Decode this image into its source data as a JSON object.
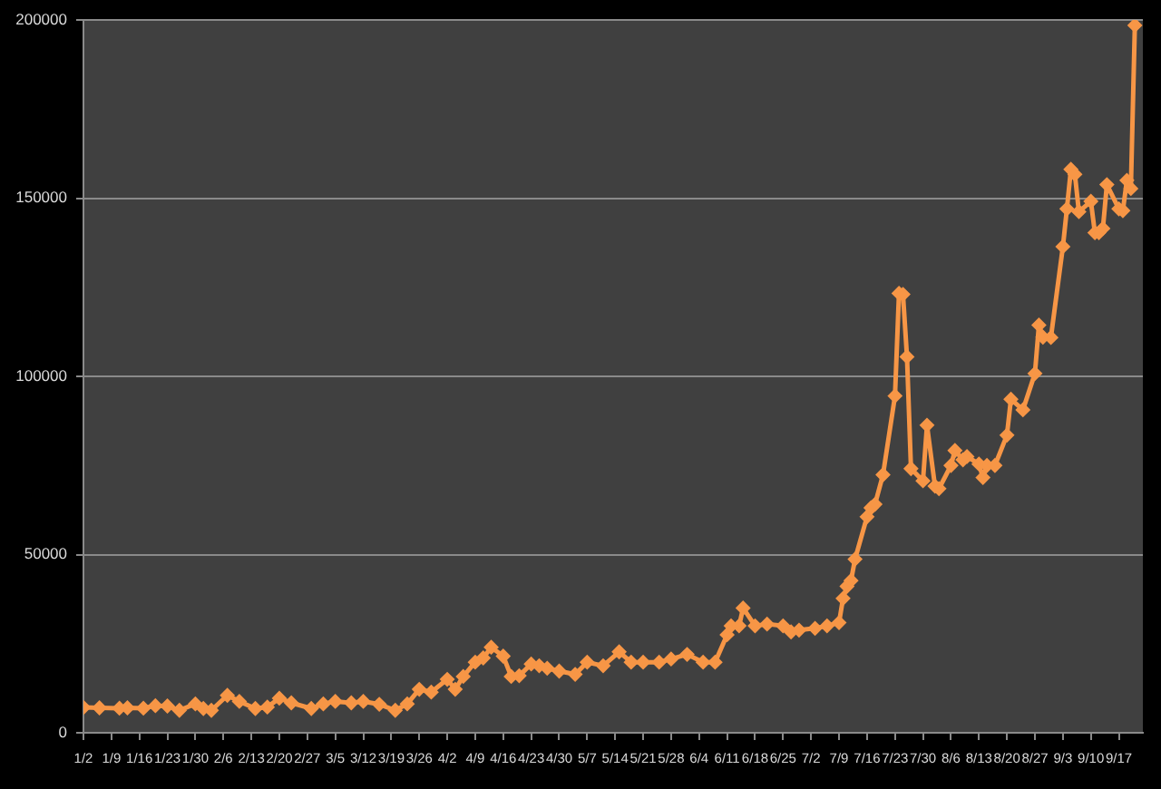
{
  "chart_data": {
    "type": "line",
    "x": [
      "--01-02",
      "--01-06",
      "--01-11",
      "--01-13",
      "--01-17",
      "--01-20",
      "--01-23",
      "--01-26",
      "--01-30",
      "--02-01",
      "--02-03",
      "--02-07",
      "--02-10",
      "--02-14",
      "--02-17",
      "--02-20",
      "--02-23",
      "--02-28",
      "--03-02",
      "--03-05",
      "--03-09",
      "--03-12",
      "--03-16",
      "--03-20",
      "--03-23",
      "--03-26",
      "--03-29",
      "--04-02",
      "--04-04",
      "--04-06",
      "--04-09",
      "--04-11",
      "--04-13",
      "--04-16",
      "--04-18",
      "--04-20",
      "--04-23",
      "--04-25",
      "--04-27",
      "--04-30",
      "--05-04",
      "--05-07",
      "--05-11",
      "--05-15",
      "--05-18",
      "--05-21",
      "--05-25",
      "--05-28",
      "--06-01",
      "--06-05",
      "--06-08",
      "--06-11",
      "--06-12",
      "--06-14",
      "--06-15",
      "--06-18",
      "--06-21",
      "--06-25",
      "--06-27",
      "--06-29",
      "--07-03",
      "--07-06",
      "--07-09",
      "--07-10",
      "--07-11",
      "--07-12",
      "--07-13",
      "--07-16",
      "--07-17",
      "--07-18",
      "--07-20",
      "--07-23",
      "--07-24",
      "--07-25",
      "--07-26",
      "--07-27",
      "--07-30",
      "--07-31",
      "--08-02",
      "--08-03",
      "--08-06",
      "--08-07",
      "--08-09",
      "--08-10",
      "--08-13",
      "--08-14",
      "--08-15",
      "--08-17",
      "--08-20",
      "--08-21",
      "--08-24",
      "--08-27",
      "--08-28",
      "--08-29",
      "--08-31",
      "--09-03",
      "--09-04",
      "--09-05",
      "--09-06",
      "--09-07",
      "--09-10",
      "--09-11",
      "--09-12",
      "--09-13",
      "--09-14",
      "--09-17",
      "--09-18",
      "--09-19",
      "--09-20",
      "--09-21"
    ],
    "series": [
      {
        "color": "#f79646",
        "values": [
          7100,
          7000,
          6900,
          7000,
          6900,
          7600,
          7500,
          6300,
          8100,
          6800,
          6300,
          10500,
          8800,
          6800,
          7200,
          9700,
          8400,
          6800,
          8100,
          8800,
          8400,
          8800,
          8000,
          6300,
          8100,
          12200,
          11400,
          15000,
          12200,
          15800,
          19800,
          21000,
          24000,
          21500,
          15800,
          16000,
          19300,
          18800,
          18100,
          17300,
          16400,
          19800,
          18800,
          22700,
          19800,
          19800,
          19800,
          20700,
          22000,
          19800,
          19800,
          27500,
          30000,
          30000,
          35000,
          30000,
          30500,
          30000,
          28300,
          28800,
          29300,
          30000,
          30900,
          37700,
          41100,
          42700,
          48700,
          60600,
          63100,
          64100,
          72400,
          94500,
          123300,
          123000,
          105500,
          74100,
          70700,
          86300,
          69200,
          68500,
          75000,
          79200,
          76600,
          77500,
          75400,
          71600,
          75000,
          75000,
          83500,
          93600,
          90600,
          100800,
          114400,
          111000,
          110900,
          136400,
          147000,
          158100,
          156700,
          146200,
          149100,
          140300,
          140300,
          141500,
          153800,
          147000,
          146500,
          155000,
          152700,
          198500
        ]
      }
    ],
    "xlim": [
      "--01-02",
      "--09-23"
    ],
    "xticks": [
      {
        "value": "--01-02",
        "label": "1/2"
      },
      {
        "value": "--01-09",
        "label": "1/9"
      },
      {
        "value": "--01-16",
        "label": "1/16"
      },
      {
        "value": "--01-23",
        "label": "1/23"
      },
      {
        "value": "--01-30",
        "label": "1/30"
      },
      {
        "value": "--02-06",
        "label": "2/6"
      },
      {
        "value": "--02-13",
        "label": "2/13"
      },
      {
        "value": "--02-20",
        "label": "2/20"
      },
      {
        "value": "--02-27",
        "label": "2/27"
      },
      {
        "value": "--03-05",
        "label": "3/5"
      },
      {
        "value": "--03-12",
        "label": "3/12"
      },
      {
        "value": "--03-19",
        "label": "3/19"
      },
      {
        "value": "--03-26",
        "label": "3/26"
      },
      {
        "value": "--04-02",
        "label": "4/2"
      },
      {
        "value": "--04-09",
        "label": "4/9"
      },
      {
        "value": "--04-16",
        "label": "4/16"
      },
      {
        "value": "--04-23",
        "label": "4/23"
      },
      {
        "value": "--04-30",
        "label": "4/30"
      },
      {
        "value": "--05-07",
        "label": "5/7"
      },
      {
        "value": "--05-14",
        "label": "5/14"
      },
      {
        "value": "--05-21",
        "label": "5/21"
      },
      {
        "value": "--05-28",
        "label": "5/28"
      },
      {
        "value": "--06-04",
        "label": "6/4"
      },
      {
        "value": "--06-11",
        "label": "6/11"
      },
      {
        "value": "--06-18",
        "label": "6/18"
      },
      {
        "value": "--06-25",
        "label": "6/25"
      },
      {
        "value": "--07-02",
        "label": "7/2"
      },
      {
        "value": "--07-09",
        "label": "7/9"
      },
      {
        "value": "--07-16",
        "label": "7/16"
      },
      {
        "value": "--07-23",
        "label": "7/23"
      },
      {
        "value": "--07-30",
        "label": "7/30"
      },
      {
        "value": "--08-06",
        "label": "8/6"
      },
      {
        "value": "--08-13",
        "label": "8/13"
      },
      {
        "value": "--08-20",
        "label": "8/20"
      },
      {
        "value": "--08-27",
        "label": "8/27"
      },
      {
        "value": "--09-03",
        "label": "9/3"
      },
      {
        "value": "--09-10",
        "label": "9/10"
      },
      {
        "value": "--09-17",
        "label": "9/17"
      }
    ],
    "ylim": [
      0,
      200000
    ],
    "yticks": [
      0,
      50000,
      100000,
      150000,
      200000
    ],
    "grid": "y",
    "marker": "diamond"
  }
}
